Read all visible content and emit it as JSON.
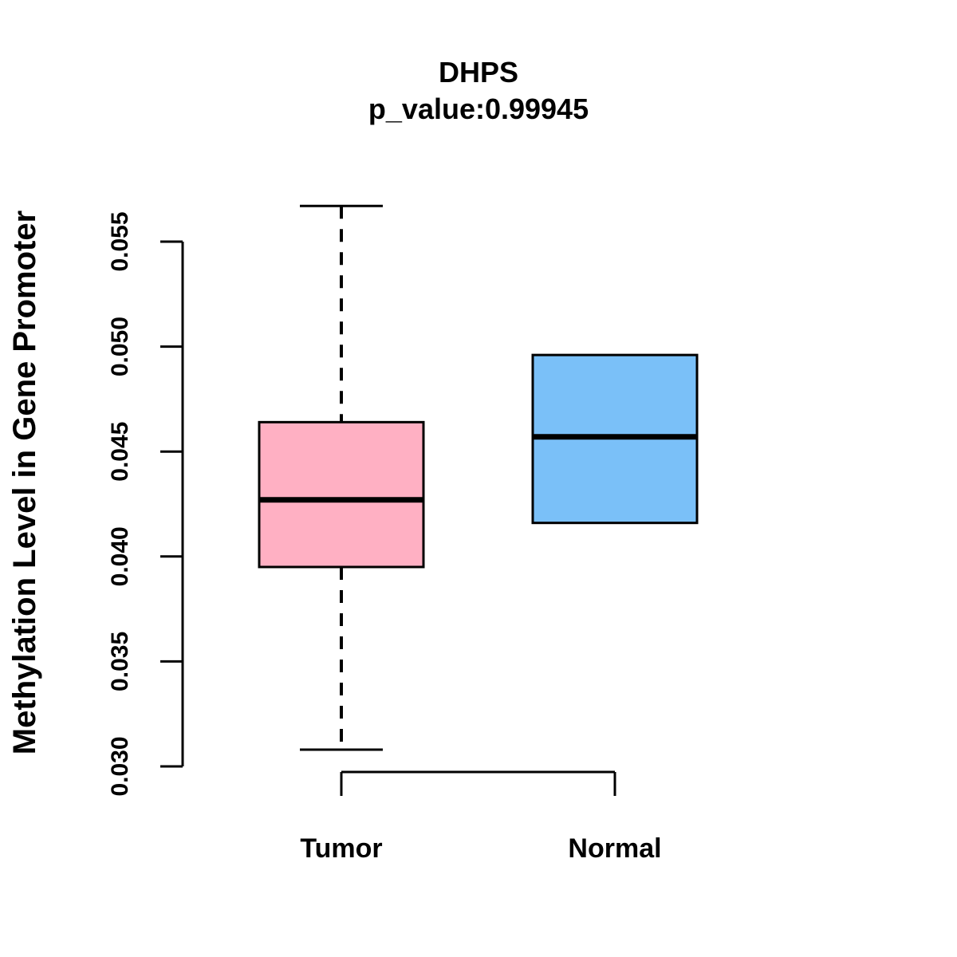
{
  "title": {
    "line1": "DHPS",
    "line2": "p_value:0.99945"
  },
  "y_axis": {
    "label": "Methylation Level in Gene Promoter",
    "tick_labels": [
      "0.030",
      "0.035",
      "0.040",
      "0.045",
      "0.050",
      "0.055"
    ]
  },
  "x_axis": {
    "group_labels": [
      "Tumor",
      "Normal"
    ]
  },
  "colors": {
    "tumor_fill": "#ffb0c3",
    "normal_fill": "#7ac0f8",
    "line_color": "#000000",
    "background": "#ffffff"
  },
  "chart_data": {
    "type": "boxplot",
    "title": "DHPS",
    "subtitle": "p_value:0.99945",
    "p_value": 0.99945,
    "ylabel": "Methylation Level in Gene Promoter",
    "xlabel": "",
    "ylim": [
      0.03,
      0.055
    ],
    "yticks": [
      0.03,
      0.035,
      0.04,
      0.045,
      0.05,
      0.055
    ],
    "categories": [
      "Tumor",
      "Normal"
    ],
    "grid": false,
    "legend": "none",
    "series": [
      {
        "name": "Tumor",
        "color": "#ffb0c3",
        "lower_whisker": 0.0308,
        "q1": 0.0395,
        "median": 0.0427,
        "q3": 0.0464,
        "upper_whisker": 0.0567
      },
      {
        "name": "Normal",
        "color": "#7ac0f8",
        "lower_whisker": 0.0416,
        "q1": 0.0416,
        "median": 0.0457,
        "q3": 0.0496,
        "upper_whisker": 0.0496
      }
    ]
  }
}
